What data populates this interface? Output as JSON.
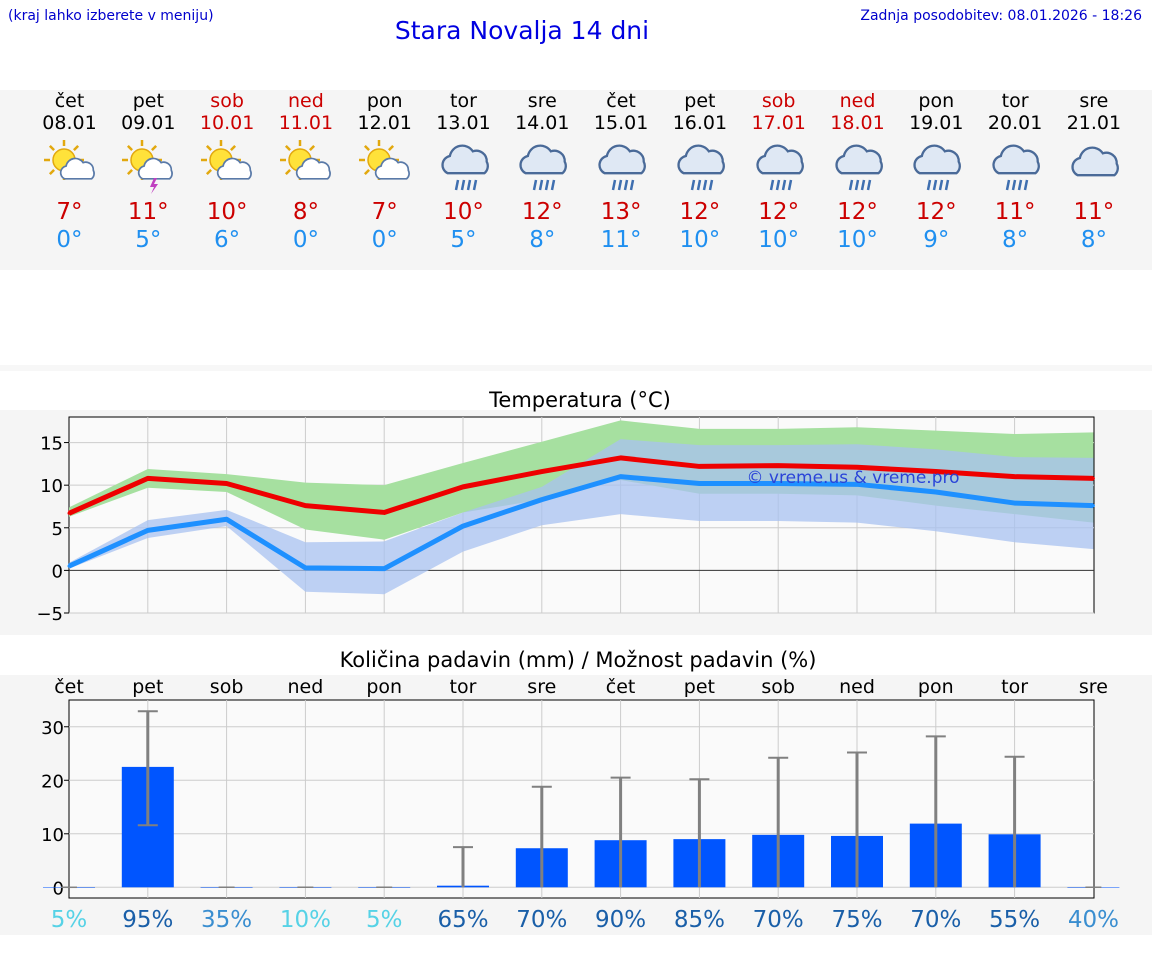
{
  "header": {
    "hint": "(kraj lahko izberete v meniju)",
    "title": "Stara Novalja 14 dni",
    "updated": "Zadnja posodobitev: 08.01.2026 - 18:26"
  },
  "days": [
    {
      "name": "čet",
      "date": "08.01",
      "weekend": false,
      "icon": "sun-cloud-icon",
      "max": "7°",
      "min": "0°"
    },
    {
      "name": "pet",
      "date": "09.01",
      "weekend": false,
      "icon": "sun-cloud-thunder-icon",
      "max": "11°",
      "min": "5°"
    },
    {
      "name": "sob",
      "date": "10.01",
      "weekend": true,
      "icon": "sun-cloud-icon",
      "max": "10°",
      "min": "6°"
    },
    {
      "name": "ned",
      "date": "11.01",
      "weekend": true,
      "icon": "sun-cloud-icon",
      "max": "8°",
      "min": "0°"
    },
    {
      "name": "pon",
      "date": "12.01",
      "weekend": false,
      "icon": "sun-cloud-icon",
      "max": "7°",
      "min": "0°"
    },
    {
      "name": "tor",
      "date": "13.01",
      "weekend": false,
      "icon": "rain-cloud-icon",
      "max": "10°",
      "min": "5°"
    },
    {
      "name": "sre",
      "date": "14.01",
      "weekend": false,
      "icon": "rain-cloud-icon",
      "max": "12°",
      "min": "8°"
    },
    {
      "name": "čet",
      "date": "15.01",
      "weekend": false,
      "icon": "rain-cloud-icon",
      "max": "13°",
      "min": "11°"
    },
    {
      "name": "pet",
      "date": "16.01",
      "weekend": false,
      "icon": "rain-cloud-icon",
      "max": "12°",
      "min": "10°"
    },
    {
      "name": "sob",
      "date": "17.01",
      "weekend": true,
      "icon": "rain-cloud-icon",
      "max": "12°",
      "min": "10°"
    },
    {
      "name": "ned",
      "date": "18.01",
      "weekend": true,
      "icon": "rain-cloud-icon",
      "max": "12°",
      "min": "10°"
    },
    {
      "name": "pon",
      "date": "19.01",
      "weekend": false,
      "icon": "rain-cloud-icon",
      "max": "12°",
      "min": "9°"
    },
    {
      "name": "tor",
      "date": "20.01",
      "weekend": false,
      "icon": "rain-cloud-icon",
      "max": "11°",
      "min": "8°"
    },
    {
      "name": "sre",
      "date": "21.01",
      "weekend": false,
      "icon": "cloud-icon",
      "max": "11°",
      "min": "8°"
    }
  ],
  "colors": {
    "max_line": "#ee0000",
    "min_line": "#1e90ff",
    "max_band": "#a6e0a0",
    "min_band": "#a8c2f0",
    "overlap_band": "#7cc4a4",
    "bar": "#0055ff",
    "error_bar": "#808080",
    "weekend": "#cc0000",
    "accent": "#0000e0"
  },
  "chart_data": [
    {
      "type": "line",
      "title": "Temperatura (°C)",
      "watermark": "© vreme.us & vreme.pro",
      "x": [
        0,
        1,
        2,
        3,
        4,
        5,
        6,
        7,
        8,
        9,
        10,
        11,
        12,
        13
      ],
      "ylim": [
        -5,
        18
      ],
      "yticks": [
        -5,
        0,
        5,
        10,
        15
      ],
      "ytick_labels": [
        "−5",
        "0",
        "5",
        "10",
        "15"
      ],
      "grid": true,
      "series": [
        {
          "name": "max",
          "values": [
            6.7,
            10.8,
            10.2,
            7.6,
            6.8,
            9.8,
            11.6,
            13.2,
            12.2,
            12.3,
            12.1,
            11.6,
            11.0,
            10.8
          ],
          "band_low": [
            6.3,
            9.7,
            9.2,
            4.8,
            3.6,
            6.8,
            8.3,
            10.6,
            9.0,
            9.0,
            8.8,
            7.6,
            6.6,
            5.6
          ],
          "band_high": [
            7.4,
            11.9,
            11.3,
            10.3,
            10.0,
            12.6,
            15.1,
            17.6,
            16.6,
            16.6,
            16.8,
            16.4,
            16.0,
            16.2
          ]
        },
        {
          "name": "min",
          "values": [
            0.5,
            4.7,
            6.0,
            0.3,
            0.2,
            5.2,
            8.3,
            11.0,
            10.2,
            10.2,
            10.1,
            9.2,
            7.9,
            7.6
          ],
          "band_low": [
            0.2,
            3.8,
            5.2,
            -2.5,
            -2.8,
            2.2,
            5.3,
            6.6,
            5.8,
            5.8,
            5.6,
            4.6,
            3.3,
            2.5
          ],
          "band_high": [
            0.9,
            5.9,
            7.1,
            3.3,
            3.4,
            6.8,
            9.8,
            15.4,
            14.7,
            14.7,
            14.8,
            14.2,
            13.3,
            13.2
          ]
        }
      ]
    },
    {
      "type": "bar",
      "title": "Količina padavin (mm) / Možnost padavin (%)",
      "categories": [
        "čet",
        "pet",
        "sob",
        "ned",
        "pon",
        "tor",
        "sre",
        "čet",
        "pet",
        "sob",
        "ned",
        "pon",
        "tor",
        "sre"
      ],
      "values": [
        0,
        22.5,
        0,
        0,
        0,
        0.3,
        7.3,
        8.8,
        9.0,
        9.8,
        9.6,
        11.9,
        9.9,
        0
      ],
      "error_high": [
        0,
        32.9,
        0,
        0,
        0,
        7.5,
        18.8,
        20.5,
        20.2,
        24.2,
        25.2,
        28.2,
        24.4,
        0
      ],
      "error_low": [
        0,
        11.6,
        0,
        0,
        0,
        0,
        0,
        0,
        0,
        0,
        0,
        0,
        0,
        0
      ],
      "probability": [
        "5%",
        "95%",
        "35%",
        "10%",
        "5%",
        "65%",
        "70%",
        "90%",
        "85%",
        "70%",
        "75%",
        "70%",
        "55%",
        "40%"
      ],
      "probability_colors": [
        "#56d2e6",
        "#1a5fa8",
        "#3a8ed0",
        "#56d2e6",
        "#56d2e6",
        "#1a5fa8",
        "#1a5fa8",
        "#1a5fa8",
        "#1a5fa8",
        "#1a5fa8",
        "#1a5fa8",
        "#1a5fa8",
        "#1a5fa8",
        "#3a8ed0"
      ],
      "ylim": [
        -2,
        35
      ],
      "yticks": [
        0,
        10,
        20,
        30
      ],
      "ytick_labels": [
        "0",
        "10",
        "20",
        "30"
      ],
      "grid": true
    }
  ]
}
